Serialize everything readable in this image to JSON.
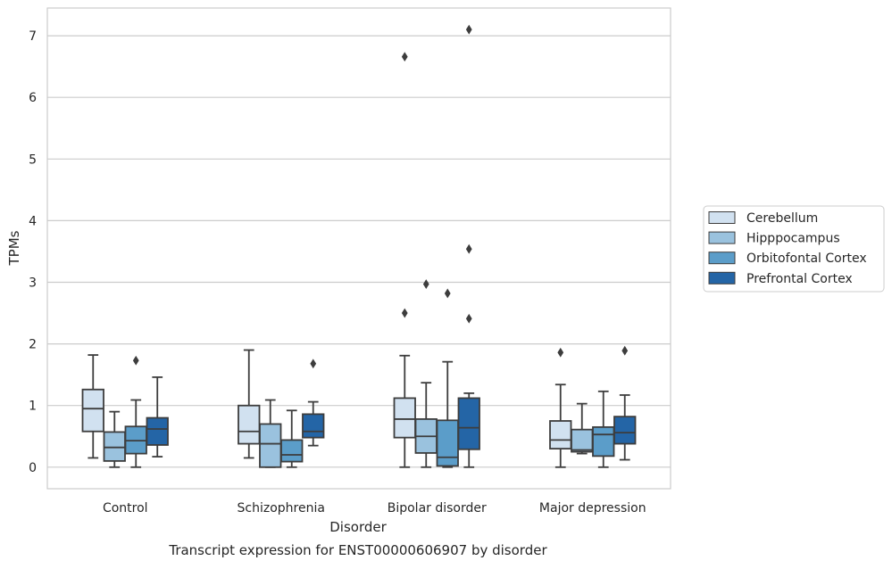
{
  "chart_data": {
    "type": "boxplot",
    "title": "Transcript expression for ENST00000606907 by disorder",
    "xlabel": "Disorder",
    "ylabel": "TPMs",
    "ylim": [
      -0.35,
      7.45
    ],
    "yticks": [
      0,
      1,
      2,
      3,
      4,
      5,
      6,
      7
    ],
    "grid": true,
    "legend_position": "right",
    "categories": [
      "Control",
      "Schizophrenia",
      "Bipolar disorder",
      "Major depression"
    ],
    "series": [
      {
        "name": "Cerebellum",
        "color": "#d1e1f0",
        "boxes": [
          {
            "whislo": 0.15,
            "q1": 0.58,
            "med": 0.95,
            "q3": 1.26,
            "whishi": 1.82,
            "fliers": []
          },
          {
            "whislo": 0.15,
            "q1": 0.38,
            "med": 0.58,
            "q3": 1.0,
            "whishi": 1.9,
            "fliers": []
          },
          {
            "whislo": 0.0,
            "q1": 0.48,
            "med": 0.78,
            "q3": 1.12,
            "whishi": 1.81,
            "fliers": [
              2.5,
              6.66
            ]
          },
          {
            "whislo": 0.0,
            "q1": 0.3,
            "med": 0.44,
            "q3": 0.75,
            "whishi": 1.34,
            "fliers": [
              1.86
            ]
          }
        ]
      },
      {
        "name": "Hipppocampus",
        "color": "#9ac2de",
        "boxes": [
          {
            "whislo": 0.0,
            "q1": 0.1,
            "med": 0.32,
            "q3": 0.57,
            "whishi": 0.9,
            "fliers": []
          },
          {
            "whislo": 0.0,
            "q1": 0.0,
            "med": 0.38,
            "q3": 0.7,
            "whishi": 1.09,
            "fliers": []
          },
          {
            "whislo": 0.0,
            "q1": 0.23,
            "med": 0.5,
            "q3": 0.78,
            "whishi": 1.37,
            "fliers": [
              2.97
            ]
          },
          {
            "whislo": 0.22,
            "q1": 0.25,
            "med": 0.28,
            "q3": 0.61,
            "whishi": 1.03,
            "fliers": []
          }
        ]
      },
      {
        "name": "Orbitofontal Cortex",
        "color": "#5b9dc9",
        "boxes": [
          {
            "whislo": 0.0,
            "q1": 0.22,
            "med": 0.43,
            "q3": 0.66,
            "whishi": 1.09,
            "fliers": [
              1.73
            ]
          },
          {
            "whislo": 0.0,
            "q1": 0.09,
            "med": 0.2,
            "q3": 0.44,
            "whishi": 0.92,
            "fliers": []
          },
          {
            "whislo": 0.0,
            "q1": 0.02,
            "med": 0.16,
            "q3": 0.76,
            "whishi": 1.71,
            "fliers": [
              2.82
            ]
          },
          {
            "whislo": 0.0,
            "q1": 0.18,
            "med": 0.53,
            "q3": 0.65,
            "whishi": 1.23,
            "fliers": []
          }
        ]
      },
      {
        "name": "Prefrontal Cortex",
        "color": "#2465a6",
        "boxes": [
          {
            "whislo": 0.17,
            "q1": 0.36,
            "med": 0.62,
            "q3": 0.8,
            "whishi": 1.46,
            "fliers": []
          },
          {
            "whislo": 0.35,
            "q1": 0.48,
            "med": 0.58,
            "q3": 0.86,
            "whishi": 1.06,
            "fliers": [
              1.68
            ]
          },
          {
            "whislo": 0.0,
            "q1": 0.29,
            "med": 0.64,
            "q3": 1.12,
            "whishi": 1.2,
            "fliers": [
              2.41,
              3.54,
              7.1
            ]
          },
          {
            "whislo": 0.12,
            "q1": 0.38,
            "med": 0.56,
            "q3": 0.82,
            "whishi": 1.17,
            "fliers": [
              1.89
            ]
          }
        ]
      }
    ]
  }
}
